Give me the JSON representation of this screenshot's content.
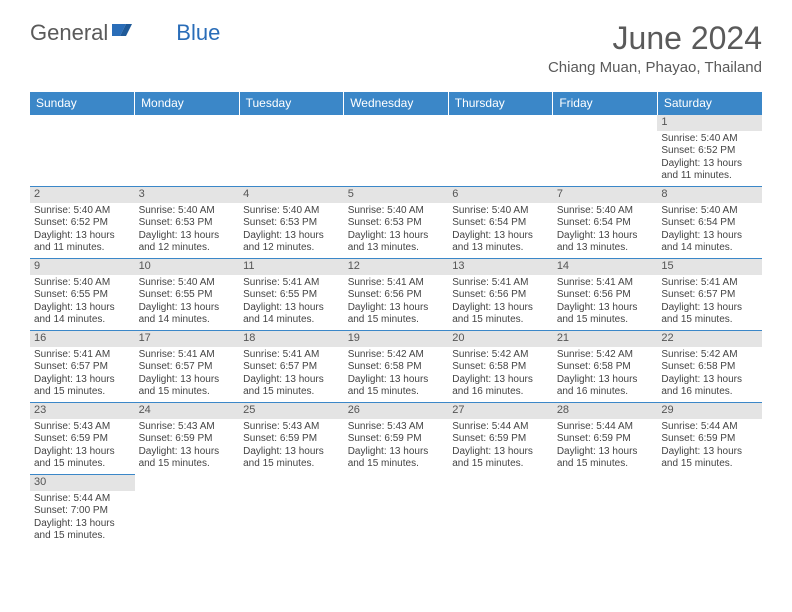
{
  "brand": {
    "part1": "General",
    "part2": "Blue"
  },
  "title": "June 2024",
  "location": "Chiang Muan, Phayao, Thailand",
  "colors": {
    "header_bg": "#3b87c8",
    "header_text": "#ffffff",
    "daynum_bg": "#e4e4e4",
    "border": "#3b87c8",
    "text": "#444444",
    "brand_gray": "#5a5a5a",
    "brand_blue": "#2a6db8"
  },
  "typography": {
    "title_fontsize": 32,
    "location_fontsize": 15,
    "dayheader_fontsize": 12,
    "cell_fontsize": 10
  },
  "day_headers": [
    "Sunday",
    "Monday",
    "Tuesday",
    "Wednesday",
    "Thursday",
    "Friday",
    "Saturday"
  ],
  "weeks": [
    [
      {
        "empty": true
      },
      {
        "empty": true
      },
      {
        "empty": true
      },
      {
        "empty": true
      },
      {
        "empty": true
      },
      {
        "empty": true
      },
      {
        "n": "1",
        "sunrise": "5:40 AM",
        "sunset": "6:52 PM",
        "daylight": "13 hours and 11 minutes."
      }
    ],
    [
      {
        "n": "2",
        "sunrise": "5:40 AM",
        "sunset": "6:52 PM",
        "daylight": "13 hours and 11 minutes."
      },
      {
        "n": "3",
        "sunrise": "5:40 AM",
        "sunset": "6:53 PM",
        "daylight": "13 hours and 12 minutes."
      },
      {
        "n": "4",
        "sunrise": "5:40 AM",
        "sunset": "6:53 PM",
        "daylight": "13 hours and 12 minutes."
      },
      {
        "n": "5",
        "sunrise": "5:40 AM",
        "sunset": "6:53 PM",
        "daylight": "13 hours and 13 minutes."
      },
      {
        "n": "6",
        "sunrise": "5:40 AM",
        "sunset": "6:54 PM",
        "daylight": "13 hours and 13 minutes."
      },
      {
        "n": "7",
        "sunrise": "5:40 AM",
        "sunset": "6:54 PM",
        "daylight": "13 hours and 13 minutes."
      },
      {
        "n": "8",
        "sunrise": "5:40 AM",
        "sunset": "6:54 PM",
        "daylight": "13 hours and 14 minutes."
      }
    ],
    [
      {
        "n": "9",
        "sunrise": "5:40 AM",
        "sunset": "6:55 PM",
        "daylight": "13 hours and 14 minutes."
      },
      {
        "n": "10",
        "sunrise": "5:40 AM",
        "sunset": "6:55 PM",
        "daylight": "13 hours and 14 minutes."
      },
      {
        "n": "11",
        "sunrise": "5:41 AM",
        "sunset": "6:55 PM",
        "daylight": "13 hours and 14 minutes."
      },
      {
        "n": "12",
        "sunrise": "5:41 AM",
        "sunset": "6:56 PM",
        "daylight": "13 hours and 15 minutes."
      },
      {
        "n": "13",
        "sunrise": "5:41 AM",
        "sunset": "6:56 PM",
        "daylight": "13 hours and 15 minutes."
      },
      {
        "n": "14",
        "sunrise": "5:41 AM",
        "sunset": "6:56 PM",
        "daylight": "13 hours and 15 minutes."
      },
      {
        "n": "15",
        "sunrise": "5:41 AM",
        "sunset": "6:57 PM",
        "daylight": "13 hours and 15 minutes."
      }
    ],
    [
      {
        "n": "16",
        "sunrise": "5:41 AM",
        "sunset": "6:57 PM",
        "daylight": "13 hours and 15 minutes."
      },
      {
        "n": "17",
        "sunrise": "5:41 AM",
        "sunset": "6:57 PM",
        "daylight": "13 hours and 15 minutes."
      },
      {
        "n": "18",
        "sunrise": "5:41 AM",
        "sunset": "6:57 PM",
        "daylight": "13 hours and 15 minutes."
      },
      {
        "n": "19",
        "sunrise": "5:42 AM",
        "sunset": "6:58 PM",
        "daylight": "13 hours and 15 minutes."
      },
      {
        "n": "20",
        "sunrise": "5:42 AM",
        "sunset": "6:58 PM",
        "daylight": "13 hours and 16 minutes."
      },
      {
        "n": "21",
        "sunrise": "5:42 AM",
        "sunset": "6:58 PM",
        "daylight": "13 hours and 16 minutes."
      },
      {
        "n": "22",
        "sunrise": "5:42 AM",
        "sunset": "6:58 PM",
        "daylight": "13 hours and 16 minutes."
      }
    ],
    [
      {
        "n": "23",
        "sunrise": "5:43 AM",
        "sunset": "6:59 PM",
        "daylight": "13 hours and 15 minutes."
      },
      {
        "n": "24",
        "sunrise": "5:43 AM",
        "sunset": "6:59 PM",
        "daylight": "13 hours and 15 minutes."
      },
      {
        "n": "25",
        "sunrise": "5:43 AM",
        "sunset": "6:59 PM",
        "daylight": "13 hours and 15 minutes."
      },
      {
        "n": "26",
        "sunrise": "5:43 AM",
        "sunset": "6:59 PM",
        "daylight": "13 hours and 15 minutes."
      },
      {
        "n": "27",
        "sunrise": "5:44 AM",
        "sunset": "6:59 PM",
        "daylight": "13 hours and 15 minutes."
      },
      {
        "n": "28",
        "sunrise": "5:44 AM",
        "sunset": "6:59 PM",
        "daylight": "13 hours and 15 minutes."
      },
      {
        "n": "29",
        "sunrise": "5:44 AM",
        "sunset": "6:59 PM",
        "daylight": "13 hours and 15 minutes."
      }
    ],
    [
      {
        "n": "30",
        "sunrise": "5:44 AM",
        "sunset": "7:00 PM",
        "daylight": "13 hours and 15 minutes."
      },
      {
        "empty": true
      },
      {
        "empty": true
      },
      {
        "empty": true
      },
      {
        "empty": true
      },
      {
        "empty": true
      },
      {
        "empty": true
      }
    ]
  ],
  "labels": {
    "sunrise": "Sunrise: ",
    "sunset": "Sunset: ",
    "daylight": "Daylight: "
  }
}
